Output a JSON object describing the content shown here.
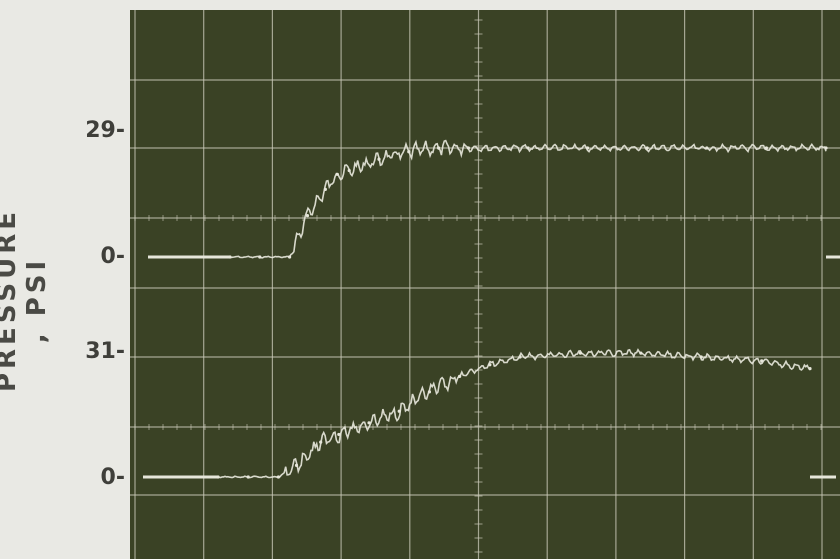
{
  "chart_data": {
    "type": "line",
    "title": "",
    "xlabel": "",
    "ylabel": "PRESSURE , PSI",
    "grid": true,
    "colors": {
      "screen": "#3a4225",
      "grid": "#c9c9b8",
      "trace": "#e6e6da",
      "page": "#e9e9e4",
      "text": "#3f3f3a"
    },
    "panels": [
      {
        "name": "upper",
        "tick_labels": [
          "29-",
          "0-"
        ],
        "levels": [
          29,
          0
        ],
        "series": [
          {
            "x": [
              0.0,
              0.5,
              1.0,
              1.3,
              1.6,
              1.8,
              2.0,
              2.5,
              3.0,
              3.5,
              4.0,
              5.0,
              6.0,
              7.0,
              8.0,
              9.0,
              10.0
            ],
            "values": [
              0,
              0,
              0,
              11,
              18,
              22,
              23,
              26,
              28,
              29,
              29,
              29,
              29,
              29,
              29,
              29,
              29
            ]
          }
        ]
      },
      {
        "name": "lower",
        "tick_labels": [
          "31-",
          "0-"
        ],
        "levels": [
          31,
          0
        ],
        "series": [
          {
            "x": [
              0.0,
              0.5,
              1.0,
              1.3,
              1.7,
              2.0,
              2.5,
              3.0,
              3.5,
              4.0,
              4.5,
              5.0,
              6.0,
              7.0,
              8.0,
              9.0,
              9.8
            ],
            "values": [
              0,
              0,
              0,
              3,
              9,
              11,
              14,
              17,
              22,
              26,
              29,
              31,
              32,
              32,
              31,
              30,
              28
            ]
          }
        ]
      }
    ]
  }
}
